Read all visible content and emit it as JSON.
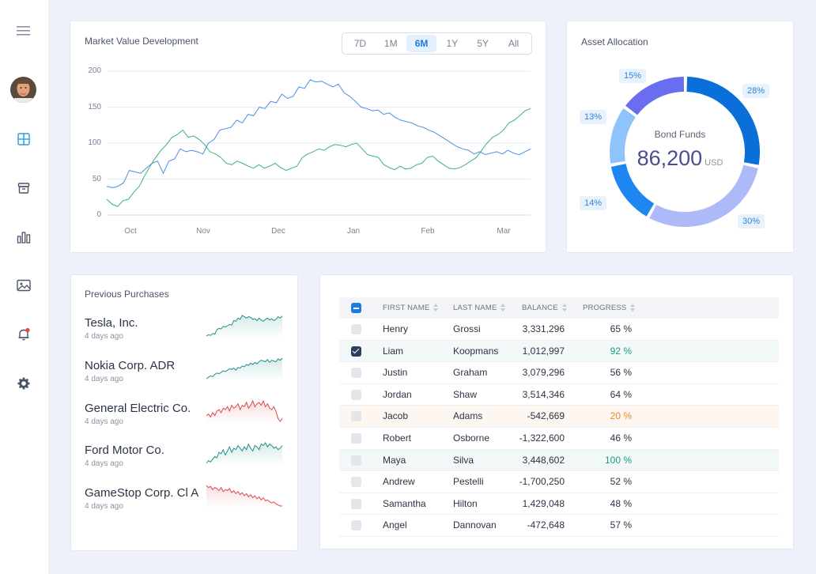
{
  "colors": {
    "accent": "#1f7ae0",
    "line_blue": "#4a90e2",
    "line_green": "#3db27a",
    "spark_teal": "#1f8f8a",
    "spark_red": "#e0474c",
    "progress_green": "#1c9c80",
    "progress_orange": "#e88a2e"
  },
  "sidebar": {
    "icons": [
      "menu-icon",
      "dashboard-grid-icon",
      "archive-box-icon",
      "bar-chart-icon",
      "image-icon",
      "bell-icon",
      "gear-icon"
    ]
  },
  "market": {
    "title": "Market Value Development",
    "ranges": [
      "7D",
      "1M",
      "6M",
      "1Y",
      "5Y",
      "All"
    ],
    "active_range": "6M"
  },
  "chart_data": {
    "type": "line",
    "title": "Market Value Development",
    "x_ticks": [
      "Oct",
      "Nov",
      "Dec",
      "Jan",
      "Feb",
      "Mar"
    ],
    "y_ticks": [
      "200",
      "150",
      "100",
      "50",
      "0"
    ],
    "ylim": [
      0,
      200
    ],
    "grid": true,
    "series": [
      {
        "color": "#4a90e2",
        "values": [
          40,
          38,
          40,
          45,
          62,
          60,
          58,
          65,
          72,
          75,
          58,
          75,
          78,
          92,
          88,
          90,
          88,
          85,
          100,
          105,
          118,
          120,
          122,
          132,
          128,
          140,
          138,
          150,
          148,
          158,
          156,
          168,
          162,
          165,
          178,
          176,
          188,
          185,
          186,
          182,
          178,
          182,
          170,
          165,
          158,
          150,
          148,
          145,
          146,
          140,
          142,
          136,
          132,
          130,
          128,
          124,
          122,
          118,
          115,
          110,
          105,
          100,
          95,
          92,
          90,
          85,
          88,
          84,
          86,
          88,
          85,
          90,
          86,
          84,
          88,
          92
        ]
      },
      {
        "color": "#3db27a",
        "values": [
          22,
          15,
          12,
          20,
          22,
          32,
          40,
          55,
          68,
          80,
          90,
          98,
          108,
          112,
          118,
          108,
          110,
          105,
          98,
          88,
          85,
          80,
          72,
          70,
          75,
          72,
          68,
          65,
          70,
          65,
          68,
          72,
          66,
          62,
          65,
          68,
          80,
          85,
          88,
          92,
          90,
          95,
          98,
          97,
          95,
          98,
          100,
          92,
          84,
          82,
          80,
          70,
          66,
          63,
          68,
          64,
          65,
          70,
          72,
          80,
          82,
          75,
          70,
          65,
          64,
          66,
          70,
          75,
          80,
          90,
          100,
          108,
          112,
          118,
          128,
          132,
          138,
          145,
          148
        ]
      }
    ]
  },
  "allocation": {
    "title": "Asset Allocation",
    "center_label": "Bond Funds",
    "center_value": "86,200",
    "center_unit": "USD",
    "segments": [
      {
        "label": "28%",
        "value": 28,
        "color": "#0a6fd8"
      },
      {
        "label": "30%",
        "value": 30,
        "color": "#aebaf7"
      },
      {
        "label": "14%",
        "value": 14,
        "color": "#1e86f0"
      },
      {
        "label": "13%",
        "value": 13,
        "color": "#8fc3fb"
      },
      {
        "label": "15%",
        "value": 15,
        "color": "#6b6df0"
      }
    ]
  },
  "purchases": {
    "title": "Previous Purchases",
    "items": [
      {
        "name": "Tesla, Inc.",
        "time": "4 days ago",
        "trend": "up",
        "spark": [
          10,
          12,
          11,
          14,
          13,
          20,
          22,
          21,
          25,
          24,
          26,
          28,
          27,
          34,
          33,
          38,
          36,
          42,
          40,
          38,
          40,
          39,
          36,
          37,
          34,
          38,
          35,
          33,
          36,
          38,
          35,
          37,
          34,
          36,
          40,
          38,
          41
        ]
      },
      {
        "name": "Nokia Corp. ADR",
        "time": "4 days ago",
        "trend": "up",
        "spark": [
          10,
          12,
          14,
          13,
          16,
          18,
          17,
          19,
          21,
          20,
          22,
          24,
          23,
          25,
          22,
          26,
          25,
          28,
          27,
          30,
          29,
          32,
          30,
          33,
          31,
          34,
          36,
          35,
          34,
          37,
          33,
          36,
          35,
          34,
          38,
          36,
          39
        ]
      },
      {
        "name": "General Electric Co.",
        "time": "4 days ago",
        "trend": "down",
        "spark": [
          26,
          27,
          25,
          28,
          26,
          29,
          30,
          28,
          31,
          30,
          32,
          29,
          33,
          31,
          32,
          34,
          30,
          33,
          32,
          35,
          31,
          33,
          36,
          32,
          34,
          35,
          33,
          36,
          32,
          34,
          31,
          30,
          32,
          29,
          24,
          22,
          24
        ]
      },
      {
        "name": "Ford Motor Co.",
        "time": "4 days ago",
        "trend": "up",
        "spark": [
          12,
          14,
          13,
          15,
          17,
          16,
          20,
          19,
          22,
          18,
          21,
          24,
          20,
          23,
          22,
          25,
          23,
          21,
          24,
          22,
          26,
          23,
          21,
          25,
          24,
          22,
          26,
          25,
          27,
          24,
          26,
          25,
          23,
          24,
          22,
          23,
          25
        ]
      },
      {
        "name": "GameStop Corp. Cl A",
        "time": "4 days ago",
        "trend": "down",
        "spark": [
          38,
          36,
          37,
          34,
          36,
          35,
          33,
          36,
          32,
          34,
          33,
          35,
          31,
          33,
          30,
          32,
          29,
          31,
          28,
          30,
          27,
          29,
          26,
          28,
          25,
          27,
          24,
          26,
          23,
          24,
          22,
          21,
          22,
          20,
          19,
          18,
          18
        ]
      }
    ]
  },
  "table": {
    "headers": {
      "first": "FIRST NAME",
      "last": "LAST NAME",
      "balance": "BALANCE",
      "progress": "PROGRESS"
    },
    "rows": [
      {
        "first": "Henry",
        "last": "Grossi",
        "balance": "3,331,296",
        "progress": "65 %",
        "checked": false,
        "tone": ""
      },
      {
        "first": "Liam",
        "last": "Koopmans",
        "balance": "1,012,997",
        "progress": "92 %",
        "checked": true,
        "tone": "green"
      },
      {
        "first": "Justin",
        "last": "Graham",
        "balance": "3,079,296",
        "progress": "56 %",
        "checked": false,
        "tone": ""
      },
      {
        "first": "Jordan",
        "last": "Shaw",
        "balance": "3,514,346",
        "progress": "64 %",
        "checked": false,
        "tone": ""
      },
      {
        "first": "Jacob",
        "last": "Adams",
        "balance": "-542,669",
        "progress": "20 %",
        "checked": false,
        "tone": "orange"
      },
      {
        "first": "Robert",
        "last": "Osborne",
        "balance": "-1,322,600",
        "progress": "46 %",
        "checked": false,
        "tone": ""
      },
      {
        "first": "Maya",
        "last": "Silva",
        "balance": "3,448,602",
        "progress": "100 %",
        "checked": false,
        "tone": "green"
      },
      {
        "first": "Andrew",
        "last": "Pestelli",
        "balance": "-1,700,250",
        "progress": "52 %",
        "checked": false,
        "tone": ""
      },
      {
        "first": "Samantha",
        "last": "Hilton",
        "balance": "1,429,048",
        "progress": "48 %",
        "checked": false,
        "tone": ""
      },
      {
        "first": "Angel",
        "last": "Dannovan",
        "balance": "-472,648",
        "progress": "57 %",
        "checked": false,
        "tone": ""
      }
    ]
  }
}
